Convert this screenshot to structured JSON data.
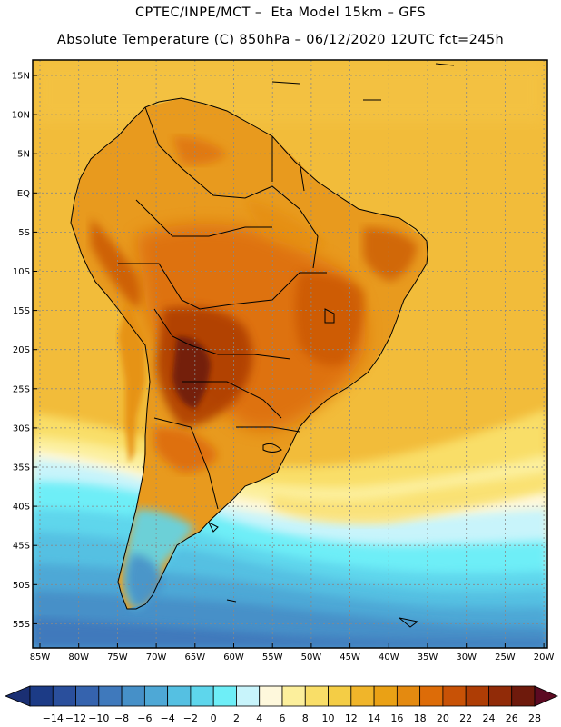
{
  "header": {
    "line1": "CPTEC/INPE/MCT –  Eta Model 15km – GFS",
    "line2": "Absolute Temperature (C) 850hPa – 06/12/2020 12UTC fct=245h"
  },
  "map": {
    "lat_labels": [
      "15N",
      "10N",
      "5N",
      "EQ",
      "5S",
      "10S",
      "15S",
      "20S",
      "25S",
      "30S",
      "35S",
      "40S",
      "45S",
      "50S",
      "55S"
    ],
    "lon_labels": [
      "85W",
      "80W",
      "75W",
      "70W",
      "65W",
      "60W",
      "55W",
      "50W",
      "45W",
      "40W",
      "35W",
      "30W",
      "25W",
      "20W"
    ],
    "gridlines": true,
    "ocean_color": "#f2bc3a",
    "land_color": "#e89a1e"
  },
  "colorbar": {
    "labels": [
      "-14",
      "-12",
      "-10",
      "-8",
      "-6",
      "-4",
      "-2",
      "0",
      "2",
      "4",
      "6",
      "8",
      "10",
      "12",
      "14",
      "16",
      "18",
      "20",
      "22",
      "24",
      "26",
      "28"
    ],
    "colors": [
      "#1c3b86",
      "#2a4f9c",
      "#3563ae",
      "#3f79bc",
      "#4690c8",
      "#4ea8d6",
      "#55c0e2",
      "#5ed6ec",
      "#6eeef7",
      "#c8f4fb",
      "#fef8dc",
      "#fcef9c",
      "#f9de68",
      "#f4cd45",
      "#f0b52a",
      "#eaa115",
      "#e48a10",
      "#dd6c08",
      "#c85206",
      "#ae3d05",
      "#912b08",
      "#6e1a0c"
    ],
    "under_color": "#1a2f73",
    "over_color": "#5c0a22"
  }
}
